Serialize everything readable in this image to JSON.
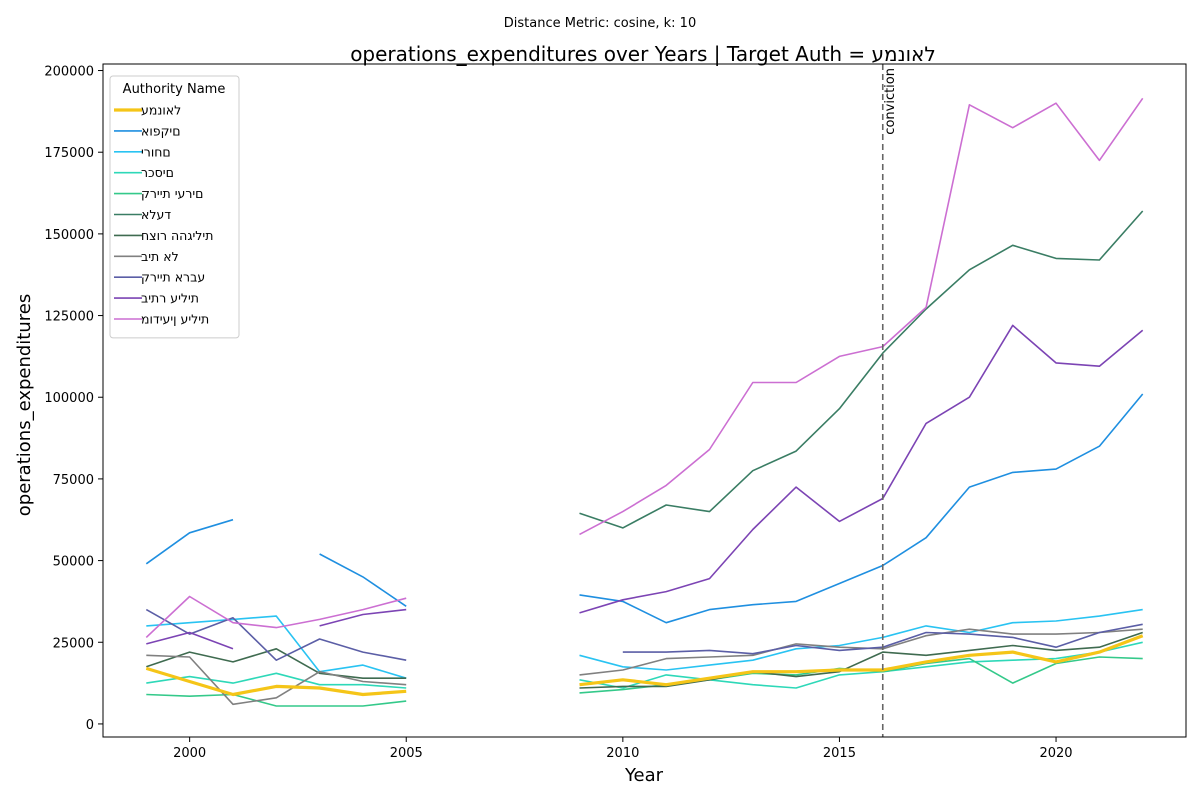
{
  "chart_data": {
    "type": "line",
    "suptitle": "Distance Metric: cosine, k: 10",
    "title": "operations_expenditures over Years | Target Auth = לאונמע",
    "xlabel": "Year",
    "ylabel": "operations_expenditures",
    "xlim": [
      1998,
      2023
    ],
    "ylim": [
      -4000,
      202000
    ],
    "xticks": [
      2000,
      2005,
      2010,
      2015,
      2020
    ],
    "yticks": [
      0,
      25000,
      50000,
      75000,
      100000,
      125000,
      150000,
      175000,
      200000
    ],
    "grid": false,
    "legend": {
      "title": "Authority Name",
      "placement": "top-left"
    },
    "annotation": {
      "x": 2016,
      "label": "conviction"
    },
    "x": [
      1999,
      2000,
      2001,
      2002,
      2003,
      2004,
      2005,
      2006,
      2007,
      2008,
      2009,
      2010,
      2011,
      2012,
      2013,
      2014,
      2015,
      2016,
      2017,
      2018,
      2019,
      2020,
      2021,
      2022
    ],
    "series": [
      {
        "name": "לאונמע",
        "color": "#f5c518",
        "target": true,
        "values": [
          17000,
          13000,
          9000,
          11500,
          11000,
          9000,
          10000,
          null,
          null,
          null,
          12000,
          13500,
          12000,
          14000,
          16000,
          16000,
          16500,
          16500,
          19000,
          21000,
          22000,
          19000,
          22000,
          27000
        ]
      },
      {
        "name": "םיקפוא",
        "color": "#1f8fe0",
        "values": [
          49000,
          58500,
          62500,
          null,
          52000,
          45000,
          36000,
          null,
          null,
          null,
          39500,
          37500,
          31000,
          35000,
          36500,
          37500,
          43000,
          48500,
          57000,
          72500,
          77000,
          78000,
          85000,
          101000
        ]
      },
      {
        "name": "םחורי",
        "color": "#29c3f2",
        "values": [
          30000,
          31000,
          32000,
          33000,
          16000,
          18000,
          14000,
          null,
          null,
          null,
          21000,
          17500,
          16500,
          18000,
          19500,
          23000,
          24000,
          26500,
          30000,
          28000,
          31000,
          31500,
          33000,
          35000
        ]
      },
      {
        "name": "םיסכר",
        "color": "#2ed8b8",
        "values": [
          12500,
          14500,
          12500,
          15500,
          12000,
          12000,
          11000,
          null,
          null,
          null,
          13500,
          11000,
          15000,
          13500,
          12000,
          11000,
          15000,
          16000,
          17500,
          19000,
          19500,
          20000,
          22000,
          25000
        ]
      },
      {
        "name": "םירעי תיירק",
        "color": "#34c98a",
        "values": [
          9000,
          8500,
          9000,
          5500,
          5500,
          5500,
          7000,
          null,
          null,
          null,
          9500,
          10500,
          12000,
          13500,
          15500,
          15000,
          17000,
          16000,
          18500,
          20000,
          12500,
          18500,
          20500,
          20000
        ]
      },
      {
        "name": "דעלא",
        "color": "#3a7d64",
        "values": [
          null,
          null,
          null,
          null,
          null,
          null,
          null,
          null,
          null,
          null,
          64500,
          60000,
          67000,
          65000,
          77500,
          83500,
          96500,
          113500,
          127000,
          139000,
          146500,
          142500,
          142000,
          157000
        ]
      },
      {
        "name": "תיליגהה רוצח",
        "color": "#3f6b50",
        "values": [
          17500,
          22000,
          19000,
          23000,
          15500,
          14000,
          14000,
          null,
          null,
          null,
          11000,
          11500,
          11500,
          13500,
          16000,
          14500,
          16000,
          22000,
          21000,
          22500,
          24000,
          22500,
          23500,
          28000
        ]
      },
      {
        "name": "לא תיב",
        "color": "#808080",
        "values": [
          21000,
          20500,
          6000,
          8000,
          16000,
          13000,
          12000,
          null,
          null,
          null,
          15000,
          16500,
          20000,
          20500,
          21000,
          24500,
          23500,
          23000,
          27000,
          29000,
          27500,
          27500,
          28000,
          29000
        ]
      },
      {
        "name": "עברא תיירק",
        "color": "#5b5ea6",
        "values": [
          35000,
          27500,
          32500,
          19500,
          26000,
          22000,
          19500,
          null,
          null,
          null,
          null,
          22000,
          22000,
          22500,
          21500,
          24000,
          22500,
          23500,
          28000,
          27500,
          26500,
          23500,
          28000,
          30500
        ]
      },
      {
        "name": "תיליע רתיב",
        "color": "#7c44b4",
        "values": [
          24500,
          28000,
          23000,
          null,
          30000,
          33500,
          35000,
          null,
          null,
          null,
          34000,
          38000,
          40500,
          44500,
          59500,
          72500,
          62000,
          69000,
          92000,
          100000,
          122000,
          110500,
          109500,
          120500
        ]
      },
      {
        "name": "תיליע ןיעידומ",
        "color": "#cc6fd2",
        "values": [
          26500,
          39000,
          31000,
          29500,
          32000,
          35000,
          38500,
          null,
          null,
          null,
          58000,
          65000,
          73000,
          84000,
          104500,
          104500,
          112500,
          115500,
          127500,
          189500,
          182500,
          190000,
          172500,
          191500
        ]
      }
    ]
  }
}
